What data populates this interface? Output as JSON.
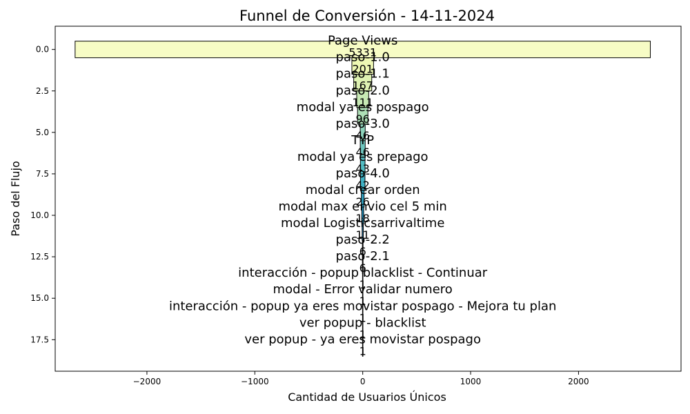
{
  "chart_data": {
    "type": "bar",
    "orientation": "horizontal-funnel",
    "title": "Funnel de Conversión - 14-11-2024",
    "xlabel": "Cantidad de Usuarios Únicos",
    "ylabel": "Paso del Flujo",
    "xlim": [
      -2850,
      2950
    ],
    "ylim": [
      19.4,
      -1.4
    ],
    "xticks": [
      -2000,
      -1000,
      0,
      1000,
      2000
    ],
    "xtick_labels": [
      "−2000",
      "−1000",
      "0",
      "1000",
      "2000"
    ],
    "yticks": [
      0,
      2.5,
      5,
      7.5,
      10,
      12.5,
      15,
      17.5
    ],
    "ytick_labels": [
      "0.0",
      "2.5",
      "5.0",
      "7.5",
      "10.0",
      "12.5",
      "15.0",
      "17.5"
    ],
    "grid": false,
    "colormap": "YlGnBu",
    "stages": [
      {
        "label": "Page Views",
        "value": 5331,
        "color": "#f7fcc5"
      },
      {
        "label": "paso-1.0",
        "value": 201,
        "color": "#eef8b4"
      },
      {
        "label": "paso-1.1",
        "value": 167,
        "color": "#def2b2"
      },
      {
        "label": "paso-2.0",
        "value": 111,
        "color": "#c7e9b4"
      },
      {
        "label": "modal ya es pospago",
        "value": 96,
        "color": "#aedfb6"
      },
      {
        "label": "paso-3.0",
        "value": 46,
        "color": "#8dd3bb"
      },
      {
        "label": "TYP",
        "value": 46,
        "color": "#6ec6be"
      },
      {
        "label": "modal ya es prepago",
        "value": 43,
        "color": "#52bcc2"
      },
      {
        "label": "paso-4.0",
        "value": 42,
        "color": "#3fb1c4"
      },
      {
        "label": "modal crear orden",
        "value": 26,
        "color": "#30a2c2"
      },
      {
        "label": "modal max envio cel 5 min",
        "value": 18,
        "color": "#1f8fbb"
      },
      {
        "label": "modal Logisticsarrivaltime",
        "value": 11,
        "color": "#1f7cb4"
      },
      {
        "label": "paso-2.2",
        "value": 6,
        "color": "#2166ac"
      },
      {
        "label": "paso-2.1",
        "value": 6,
        "color": "#2353a3"
      },
      {
        "label": "interacción - popup blacklist - Continuar",
        "value": 1,
        "color": "#243f99"
      },
      {
        "label": "modal - Error validar numero",
        "value": 1,
        "color": "#202f89"
      },
      {
        "label": "interacción - popup ya eres movistar pospago - Mejora tu plan",
        "value": 1,
        "color": "#172473"
      },
      {
        "label": "ver popup - blacklist",
        "value": 1,
        "color": "#0f1c5e"
      },
      {
        "label": "ver popup - ya eres movistar pospago",
        "value": 1,
        "color": "#081d58"
      }
    ]
  }
}
